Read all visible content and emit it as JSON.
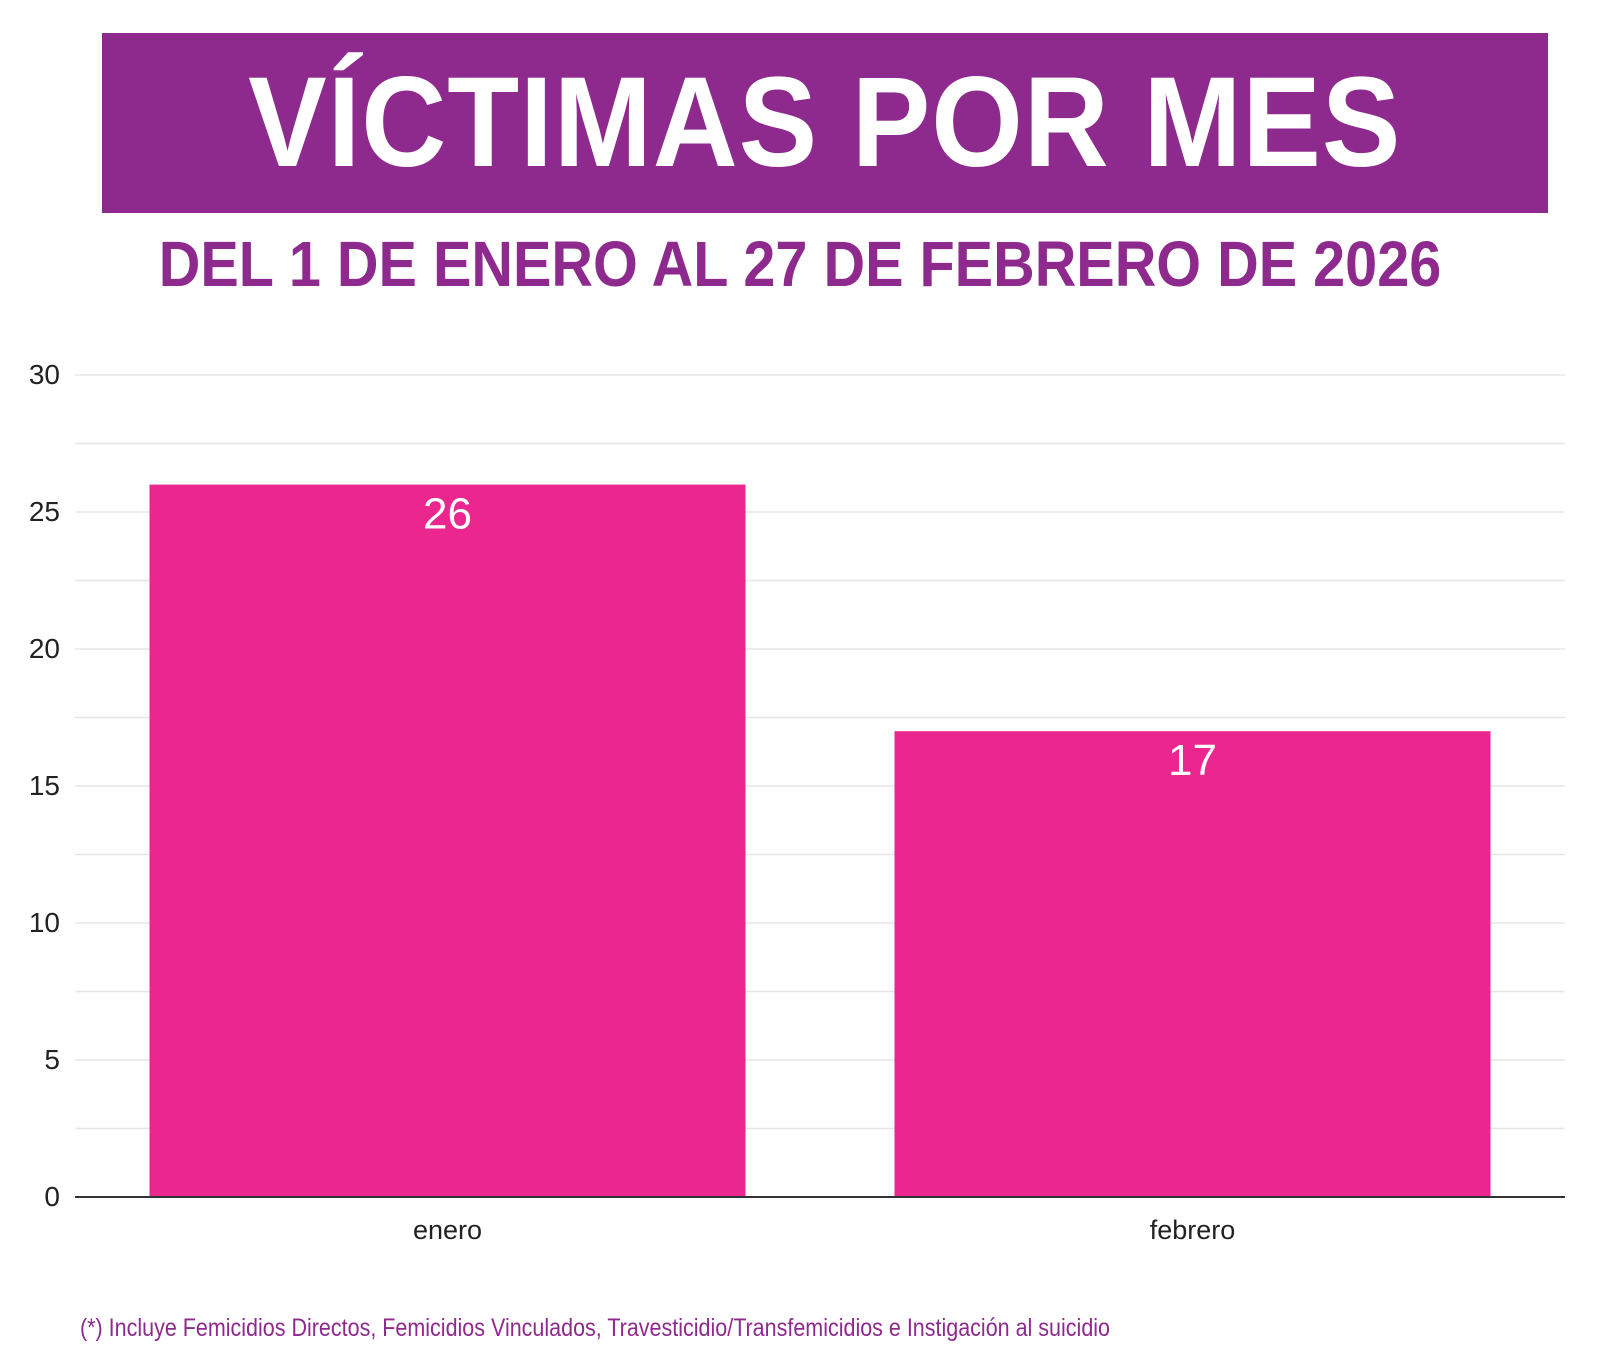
{
  "header": {
    "title": "VÍCTIMAS POR MES",
    "subtitle": "DEL 1 DE ENERO AL 27 DE FEBRERO DE 2026"
  },
  "footnote": "(*) Incluye Femicidios Directos, Femicidios Vinculados,  Travesticidio/Transfemicidios e Instigación al suicidio",
  "colors": {
    "brand_purple": "#8e2a8d",
    "bar_pink": "#ec268f",
    "gridline": "#e6e6e6",
    "axis": "#333333"
  },
  "chart_data": {
    "type": "bar",
    "categories": [
      "enero",
      "febrero"
    ],
    "values": [
      26,
      17
    ],
    "data_labels": [
      "26",
      "17"
    ],
    "title": "VÍCTIMAS POR MES",
    "subtitle": "DEL 1 DE ENERO AL 27 DE FEBRERO DE 2026",
    "xlabel": "",
    "ylabel": "",
    "ylim": [
      0,
      30
    ],
    "yticks": [
      0,
      5,
      10,
      15,
      20,
      25,
      30
    ],
    "ytick_labels": [
      "0",
      "5",
      "10",
      "15",
      "20",
      "25",
      "30"
    ],
    "minor_grid_step": 2.5,
    "grid": true,
    "legend": "none"
  }
}
